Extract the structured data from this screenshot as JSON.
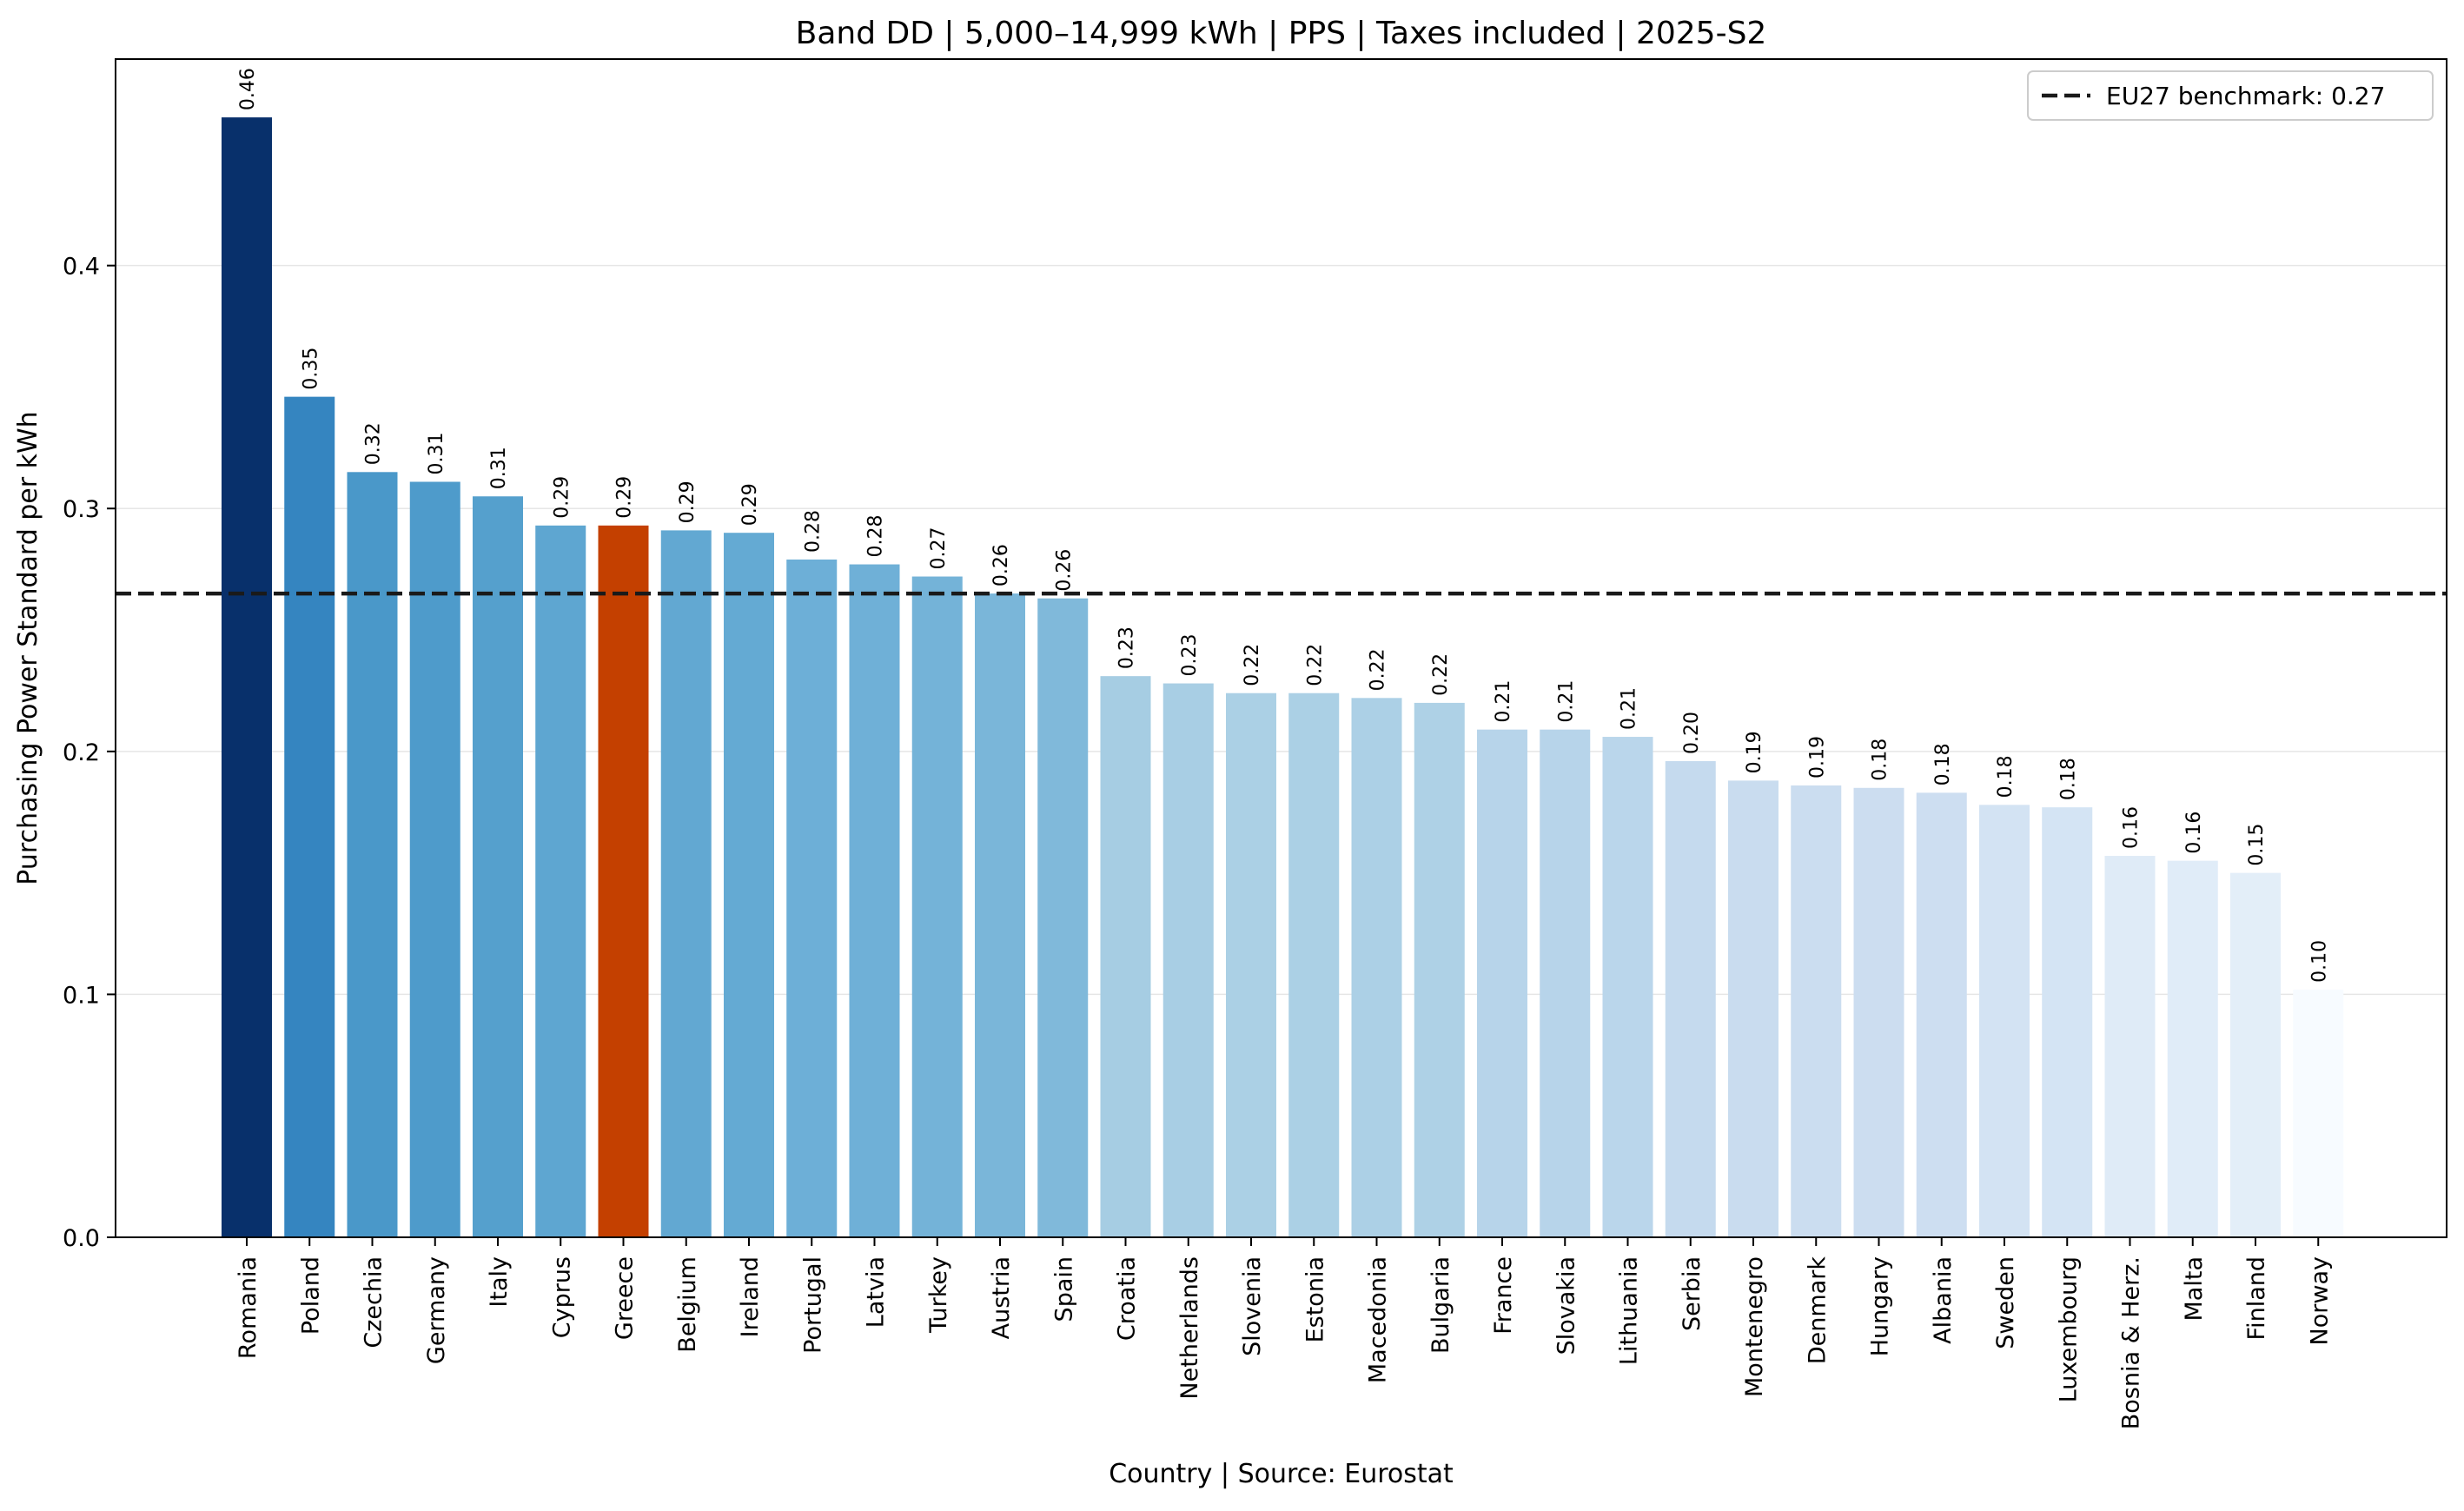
{
  "chart_data": {
    "type": "bar",
    "title": "Band DD | 5,000–14,999 kWh | PPS | Taxes included | 2025-S2",
    "xlabel": "Country | Source: Eurostat",
    "ylabel": "Purchasing Power Standard per kWh",
    "ylim": [
      0,
      0.485
    ],
    "yticks": [
      0.0,
      0.1,
      0.2,
      0.3,
      0.4
    ],
    "ytick_labels": [
      "0.0",
      "0.1",
      "0.2",
      "0.3",
      "0.4"
    ],
    "grid": "horizontal",
    "categories": [
      "Romania",
      "Poland",
      "Czechia",
      "Germany",
      "Italy",
      "Cyprus",
      "Greece",
      "Belgium",
      "Ireland",
      "Portugal",
      "Latvia",
      "Turkey",
      "Austria",
      "Spain",
      "Croatia",
      "Netherlands",
      "Slovenia",
      "Estonia",
      "Macedonia",
      "Bulgaria",
      "France",
      "Slovakia",
      "Lithuania",
      "Serbia",
      "Montenegro",
      "Denmark",
      "Hungary",
      "Albania",
      "Sweden",
      "Luxembourg",
      "Bosnia & Herz.",
      "Malta",
      "Finland",
      "Norway"
    ],
    "values": [
      0.461,
      0.346,
      0.315,
      0.311,
      0.305,
      0.293,
      0.293,
      0.291,
      0.29,
      0.279,
      0.277,
      0.272,
      0.265,
      0.263,
      0.231,
      0.228,
      0.224,
      0.224,
      0.222,
      0.22,
      0.209,
      0.209,
      0.206,
      0.196,
      0.188,
      0.186,
      0.185,
      0.183,
      0.178,
      0.177,
      0.157,
      0.155,
      0.15,
      0.102
    ],
    "value_labels": [
      "0.46",
      "0.35",
      "0.32",
      "0.31",
      "0.31",
      "0.29",
      "0.29",
      "0.29",
      "0.29",
      "0.28",
      "0.28",
      "0.27",
      "0.26",
      "0.26",
      "0.23",
      "0.23",
      "0.22",
      "0.22",
      "0.22",
      "0.22",
      "0.21",
      "0.21",
      "0.21",
      "0.20",
      "0.19",
      "0.19",
      "0.18",
      "0.18",
      "0.18",
      "0.18",
      "0.16",
      "0.16",
      "0.15",
      "0.10"
    ],
    "colors": [
      "#08306b",
      "#3585c0",
      "#4a98c9",
      "#4e9bcb",
      "#55a0cd",
      "#5ea6d1",
      "#c44000",
      "#62a8d2",
      "#64aad3",
      "#6dafd7",
      "#6fb0d7",
      "#74b3d8",
      "#7ab6d9",
      "#80b9da",
      "#a6cde3",
      "#a8cee4",
      "#abd0e5",
      "#abd0e5",
      "#acd0e6",
      "#aed1e6",
      "#b7d4ea",
      "#b7d4ea",
      "#bad6eb",
      "#c5daee",
      "#c9dcef",
      "#cbddf0",
      "#ccddf0",
      "#cddef1",
      "#d3e3f3",
      "#d4e4f4",
      "#dfebf7",
      "#e0ecf8",
      "#e3eef8",
      "#f7fbff"
    ],
    "highlight": "Greece",
    "benchmark": {
      "value": 0.265,
      "label": "EU27 benchmark: 0.27",
      "style": "dashed",
      "color": "#1a1a1a"
    },
    "legend_position": "top-right"
  }
}
